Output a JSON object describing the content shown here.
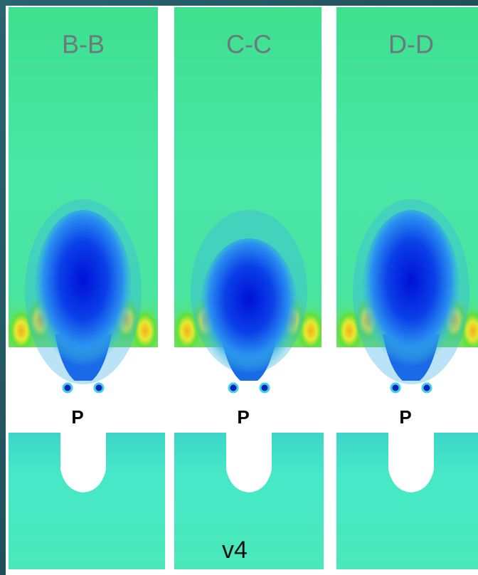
{
  "panels": [
    {
      "label": "B-B",
      "marker": "P"
    },
    {
      "label": "C-C",
      "marker": "P"
    },
    {
      "label": "D-D",
      "marker": "P"
    }
  ],
  "footer": "v4"
}
